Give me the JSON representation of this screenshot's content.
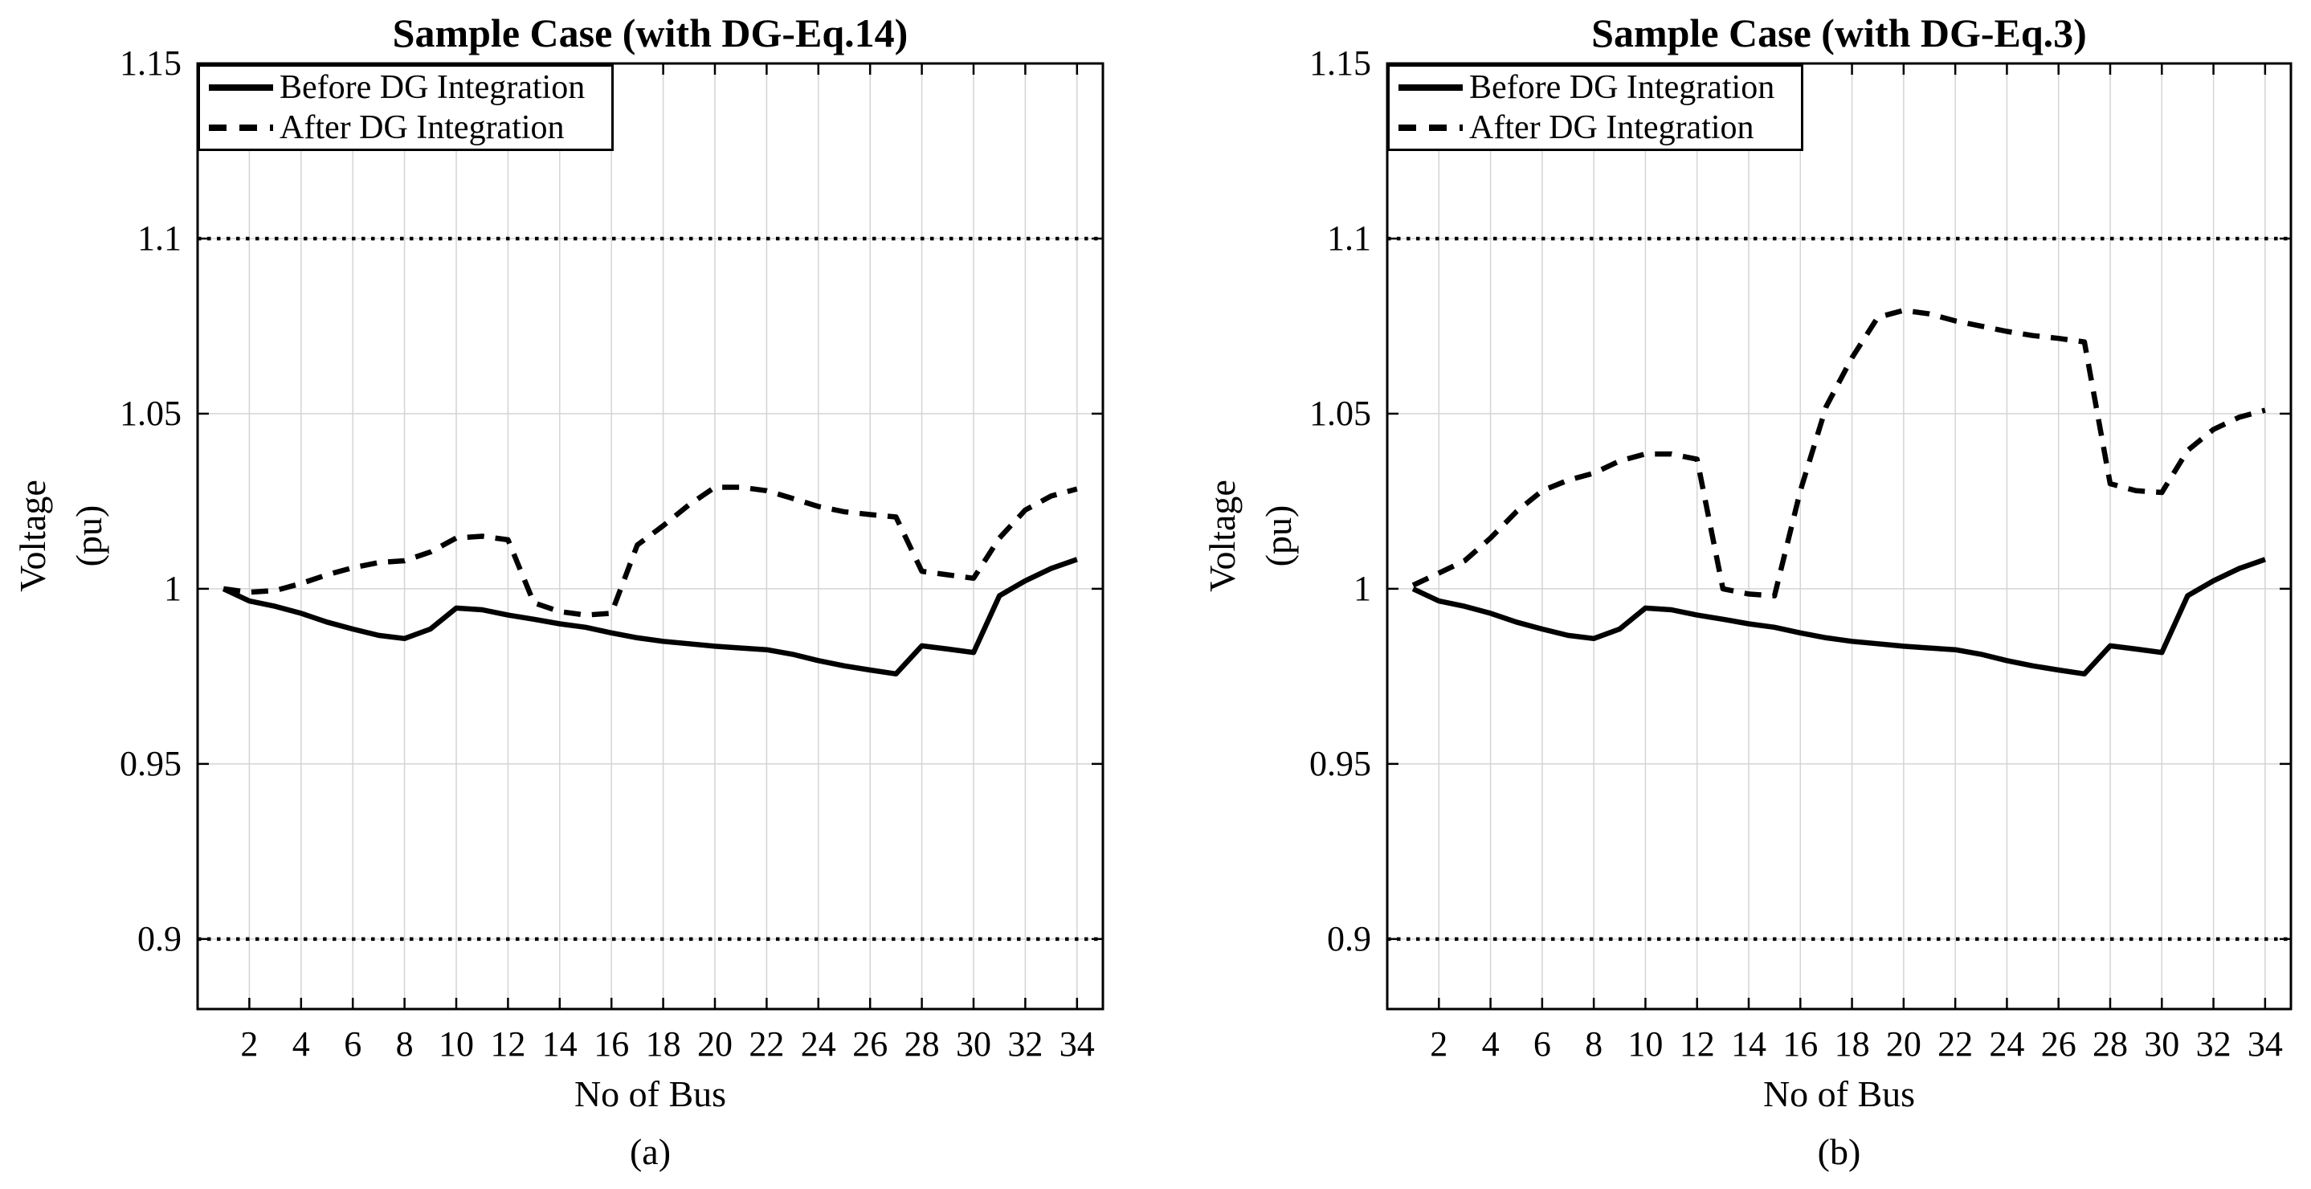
{
  "figure": {
    "background": "#ffffff",
    "text_color": "#000000",
    "grid_color": "#d4d4d4"
  },
  "chart_data": [
    {
      "type": "line",
      "title": "Sample Case (with DG-Eq.14)",
      "sublabel": "(a)",
      "xlabel": "No of Bus",
      "ylabel_line1": "Voltage",
      "ylabel_line2": "(pu)",
      "xlim": [
        0,
        35
      ],
      "ylim": [
        0.88,
        1.15
      ],
      "grid": "on",
      "legend_position": "upper left",
      "xticks": [
        2,
        4,
        6,
        8,
        10,
        12,
        14,
        16,
        18,
        20,
        22,
        24,
        26,
        28,
        30,
        32,
        34
      ],
      "yticks": [
        {
          "value": 0.9,
          "label": "0.9"
        },
        {
          "value": 0.95,
          "label": "0.95"
        },
        {
          "value": 1.0,
          "label": "1"
        },
        {
          "value": 1.05,
          "label": "1.05"
        },
        {
          "value": 1.1,
          "label": "1.1"
        },
        {
          "value": 1.15,
          "label": "1.15"
        }
      ],
      "limit_lines": [
        0.9,
        1.1
      ],
      "x": [
        1,
        2,
        3,
        4,
        5,
        6,
        7,
        8,
        9,
        10,
        11,
        12,
        13,
        14,
        15,
        16,
        17,
        18,
        19,
        20,
        21,
        22,
        23,
        24,
        25,
        26,
        27,
        28,
        29,
        30,
        31,
        32,
        33,
        34
      ],
      "series": [
        {
          "name": "Before DG Integration",
          "style": "solid",
          "color": "#000000",
          "values": [
            1.0,
            0.9965,
            0.995,
            0.993,
            0.9905,
            0.9885,
            0.9867,
            0.9858,
            0.9885,
            0.9945,
            0.994,
            0.9925,
            0.9913,
            0.99,
            0.989,
            0.9874,
            0.986,
            0.985,
            0.9843,
            0.9836,
            0.9831,
            0.9826,
            0.9813,
            0.9795,
            0.978,
            0.9768,
            0.9757,
            0.9837,
            0.9828,
            0.9818,
            0.998,
            1.0023,
            1.0058,
            1.0084
          ]
        },
        {
          "name": "After DG Integration",
          "style": "dashed",
          "color": "#000000",
          "values": [
            1.0,
            0.999,
            0.9995,
            1.0015,
            1.004,
            1.006,
            1.0075,
            1.008,
            1.0105,
            1.0145,
            1.015,
            1.014,
            0.996,
            0.9935,
            0.9925,
            0.993,
            1.0125,
            1.018,
            1.024,
            1.029,
            1.029,
            1.028,
            1.0258,
            1.0235,
            1.022,
            1.0212,
            1.0205,
            1.005,
            1.004,
            1.003,
            1.0145,
            1.0225,
            1.0265,
            1.0285
          ]
        }
      ]
    },
    {
      "type": "line",
      "title": "Sample Case (with DG-Eq.3)",
      "sublabel": "(b)",
      "xlabel": "No of Bus",
      "ylabel_line1": "Voltage",
      "ylabel_line2": "(pu)",
      "xlim": [
        0,
        35
      ],
      "ylim": [
        0.88,
        1.15
      ],
      "grid": "on",
      "legend_position": "upper left",
      "xticks": [
        2,
        4,
        6,
        8,
        10,
        12,
        14,
        16,
        18,
        20,
        22,
        24,
        26,
        28,
        30,
        32,
        34
      ],
      "yticks": [
        {
          "value": 0.9,
          "label": "0.9"
        },
        {
          "value": 0.95,
          "label": "0.95"
        },
        {
          "value": 1.0,
          "label": "1"
        },
        {
          "value": 1.05,
          "label": "1.05"
        },
        {
          "value": 1.1,
          "label": "1.1"
        },
        {
          "value": 1.15,
          "label": "1.15"
        }
      ],
      "limit_lines": [
        0.9,
        1.1
      ],
      "x": [
        1,
        2,
        3,
        4,
        5,
        6,
        7,
        8,
        9,
        10,
        11,
        12,
        13,
        14,
        15,
        16,
        17,
        18,
        19,
        20,
        21,
        22,
        23,
        24,
        25,
        26,
        27,
        28,
        29,
        30,
        31,
        32,
        33,
        34
      ],
      "series": [
        {
          "name": "Before DG Integration",
          "style": "solid",
          "color": "#000000",
          "values": [
            1.0,
            0.9965,
            0.995,
            0.993,
            0.9905,
            0.9885,
            0.9867,
            0.9858,
            0.9885,
            0.9945,
            0.994,
            0.9925,
            0.9913,
            0.99,
            0.989,
            0.9874,
            0.986,
            0.985,
            0.9843,
            0.9836,
            0.9831,
            0.9826,
            0.9813,
            0.9795,
            0.978,
            0.9768,
            0.9757,
            0.9837,
            0.9828,
            0.9818,
            0.998,
            1.0023,
            1.0058,
            1.0084
          ]
        },
        {
          "name": "After DG Integration",
          "style": "dashed",
          "color": "#000000",
          "values": [
            1.001,
            1.0045,
            1.008,
            1.0145,
            1.022,
            1.028,
            1.031,
            1.033,
            1.0365,
            1.0385,
            1.0385,
            1.037,
            1.0,
            0.9985,
            0.998,
            1.028,
            1.052,
            1.066,
            1.0775,
            1.0795,
            1.0785,
            1.0765,
            1.075,
            1.0735,
            1.0723,
            1.0715,
            1.0705,
            1.03,
            1.028,
            1.0275,
            1.0395,
            1.0455,
            1.049,
            1.051
          ]
        }
      ]
    }
  ]
}
